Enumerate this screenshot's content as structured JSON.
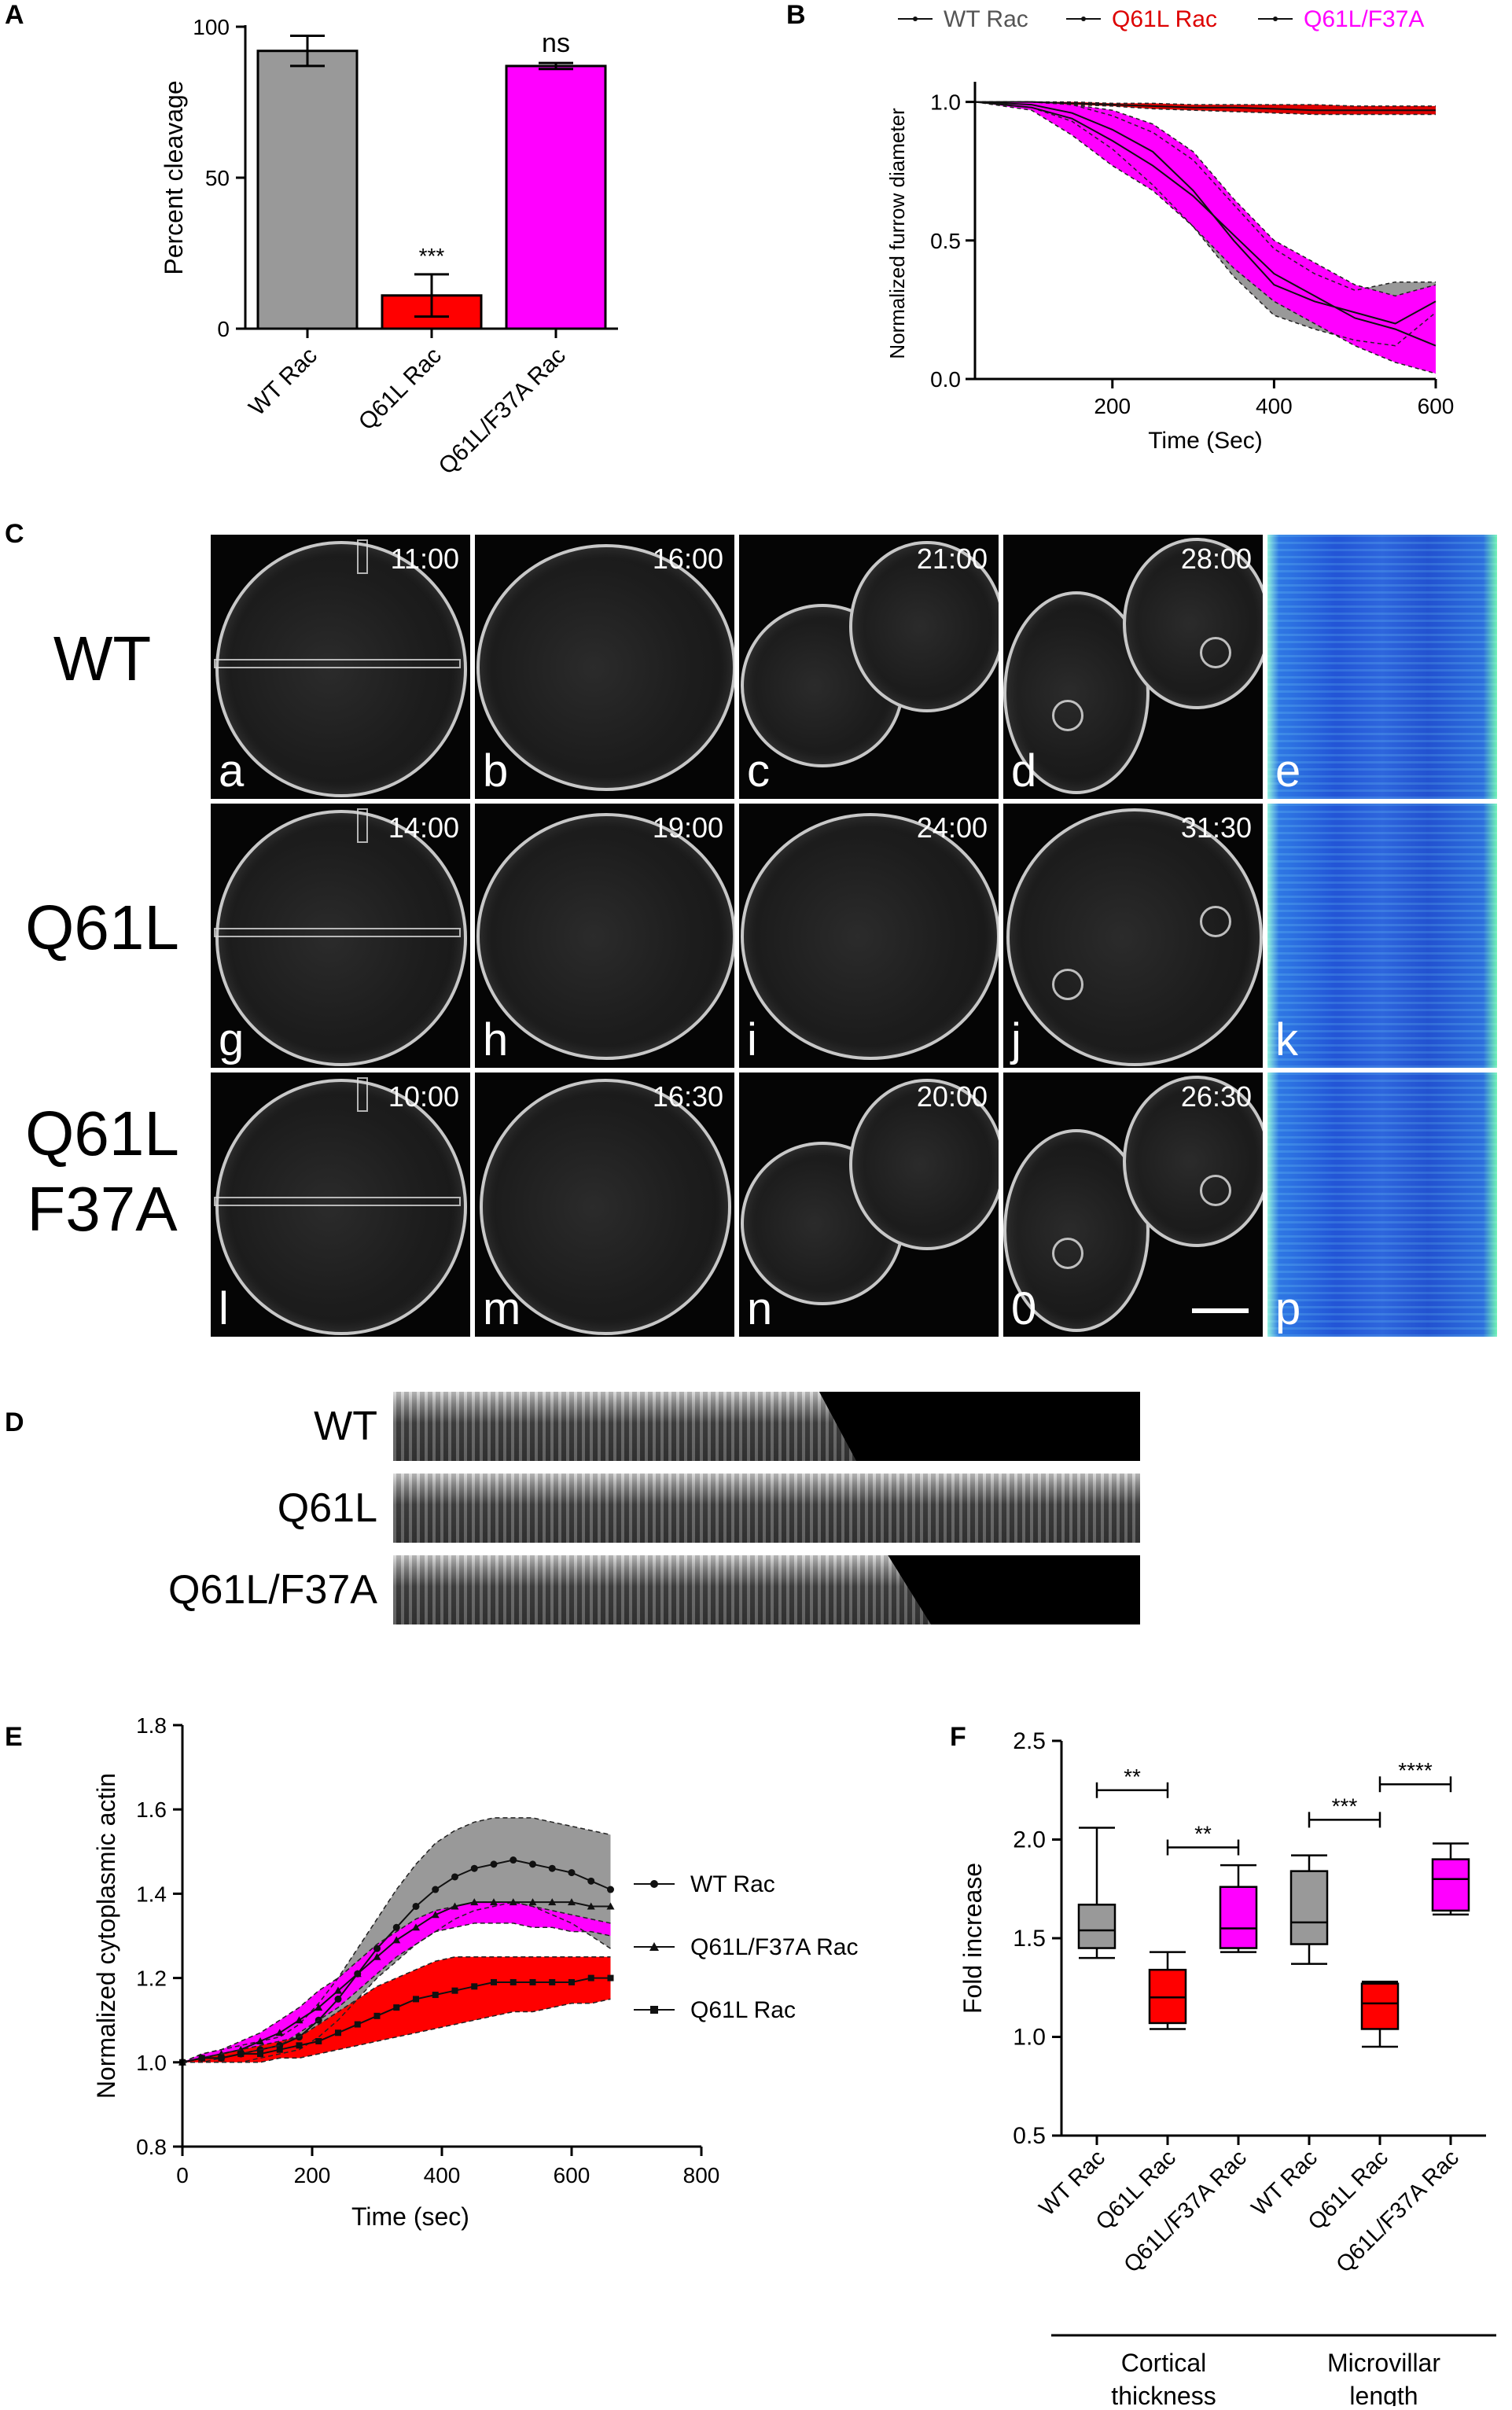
{
  "panels": {
    "A": {
      "letter": "A",
      "chart_data": {
        "type": "bar",
        "ylabel": "Percent cleavage",
        "ylim": [
          0,
          100
        ],
        "yticks": [
          "0",
          "50",
          "100"
        ],
        "categories": [
          "WT Rac",
          "Q61L Rac",
          "Q61L/F37A Rac"
        ],
        "values": [
          92,
          11,
          87
        ],
        "errors": [
          5,
          7,
          1
        ],
        "colors": [
          "#999999",
          "#ff0000",
          "#ff00ff"
        ],
        "annotations": [
          "",
          "***",
          "ns"
        ]
      }
    },
    "B": {
      "letter": "B",
      "chart_data": {
        "type": "line",
        "xlabel": "Time (Sec)",
        "ylabel": "Normalized furrow diameter",
        "xlim": [
          30,
          600
        ],
        "ylim": [
          0,
          1.05
        ],
        "xticks": [
          "200",
          "400",
          "600"
        ],
        "yticks": [
          "0.0",
          "0.5",
          "1.0"
        ],
        "legend": [
          "WT Rac",
          "Q61L Rac",
          "Q61L/F37A"
        ],
        "legend_colors": [
          "#555555",
          "#dd0000",
          "#ff00ff"
        ],
        "series": [
          {
            "name": "WT Rac",
            "color": "#999999",
            "x": [
              30,
              100,
              150,
              200,
              250,
              300,
              350,
              400,
              450,
              500,
              550,
              600
            ],
            "mean": [
              1.0,
              0.99,
              0.96,
              0.9,
              0.82,
              0.68,
              0.5,
              0.34,
              0.28,
              0.24,
              0.2,
              0.28
            ],
            "upper": [
              1.0,
              1.0,
              0.99,
              0.95,
              0.89,
              0.79,
              0.63,
              0.47,
              0.38,
              0.32,
              0.35,
              0.35
            ],
            "lower": [
              1.0,
              0.98,
              0.93,
              0.83,
              0.7,
              0.55,
              0.37,
              0.23,
              0.18,
              0.14,
              0.12,
              0.24
            ]
          },
          {
            "name": "Q61L/F37A",
            "color": "#ff00ff",
            "x": [
              30,
              100,
              150,
              200,
              250,
              300,
              350,
              400,
              450,
              500,
              550,
              600
            ],
            "mean": [
              1.0,
              0.98,
              0.94,
              0.86,
              0.77,
              0.66,
              0.52,
              0.38,
              0.3,
              0.22,
              0.18,
              0.12
            ],
            "upper": [
              1.0,
              1.0,
              0.99,
              0.97,
              0.92,
              0.82,
              0.65,
              0.5,
              0.42,
              0.34,
              0.3,
              0.34
            ],
            "lower": [
              1.0,
              0.97,
              0.88,
              0.77,
              0.68,
              0.55,
              0.4,
              0.28,
              0.2,
              0.12,
              0.06,
              0.02
            ]
          },
          {
            "name": "Q61L Rac",
            "color": "#dd0000",
            "x": [
              30,
              100,
              150,
              200,
              250,
              300,
              350,
              400,
              450,
              500,
              550,
              600
            ],
            "mean": [
              1.0,
              1.0,
              0.995,
              0.99,
              0.985,
              0.98,
              0.98,
              0.975,
              0.97,
              0.97,
              0.97,
              0.97
            ],
            "upper": [
              1.0,
              1.0,
              1.0,
              0.995,
              0.995,
              0.99,
              0.99,
              0.99,
              0.99,
              0.985,
              0.985,
              0.985
            ],
            "lower": [
              1.0,
              1.0,
              0.99,
              0.985,
              0.975,
              0.97,
              0.965,
              0.96,
              0.955,
              0.955,
              0.955,
              0.955
            ]
          }
        ]
      }
    },
    "C": {
      "letter": "C",
      "rows": [
        {
          "label_lines": [
            "WT"
          ],
          "tiles": [
            {
              "time": "11:00",
              "letter": "a"
            },
            {
              "time": "16:00",
              "letter": "b"
            },
            {
              "time": "21:00",
              "letter": "c"
            },
            {
              "time": "28:00",
              "letter": "d"
            }
          ],
          "kymo_letter": "e"
        },
        {
          "label_lines": [
            "Q61L"
          ],
          "tiles": [
            {
              "time": "14:00",
              "letter": "g"
            },
            {
              "time": "19:00",
              "letter": "h"
            },
            {
              "time": "24:00",
              "letter": "i"
            },
            {
              "time": "31:30",
              "letter": "j"
            }
          ],
          "kymo_letter": "k"
        },
        {
          "label_lines": [
            "Q61L",
            "F37A"
          ],
          "tiles": [
            {
              "time": "10:00",
              "letter": "l"
            },
            {
              "time": "16:30",
              "letter": "m"
            },
            {
              "time": "20:00",
              "letter": "n"
            },
            {
              "time": "26:30",
              "letter": "0"
            }
          ],
          "kymo_letter": "p"
        }
      ]
    },
    "D": {
      "letter": "D",
      "rows": [
        {
          "label": "WT",
          "band_fraction": 0.62
        },
        {
          "label": "Q61L",
          "band_fraction": 1.0
        },
        {
          "label": "Q61L/F37A",
          "band_fraction": 0.72
        }
      ]
    },
    "E": {
      "letter": "E",
      "chart_data": {
        "type": "line",
        "xlabel": "Time (sec)",
        "ylabel": "Normalized cytoplasmic actin",
        "xlim": [
          0,
          800
        ],
        "ylim": [
          0.8,
          1.8
        ],
        "xticks": [
          "0",
          "200",
          "400",
          "600",
          "800"
        ],
        "yticks": [
          "0.8",
          "1.0",
          "1.2",
          "1.4",
          "1.6",
          "1.8"
        ],
        "series": [
          {
            "name": "WT Rac",
            "marker": "circle",
            "color": "#999999",
            "x": [
              0,
              30,
              60,
              90,
              120,
              150,
              180,
              210,
              240,
              270,
              300,
              330,
              360,
              390,
              420,
              450,
              480,
              510,
              540,
              570,
              600,
              630,
              660
            ],
            "mean": [
              1.0,
              1.01,
              1.01,
              1.02,
              1.03,
              1.04,
              1.06,
              1.1,
              1.15,
              1.21,
              1.27,
              1.32,
              1.37,
              1.41,
              1.44,
              1.46,
              1.47,
              1.48,
              1.47,
              1.46,
              1.45,
              1.43,
              1.41
            ],
            "upper": [
              1.0,
              1.02,
              1.03,
              1.04,
              1.05,
              1.06,
              1.09,
              1.14,
              1.2,
              1.27,
              1.34,
              1.41,
              1.47,
              1.52,
              1.55,
              1.57,
              1.58,
              1.58,
              1.58,
              1.57,
              1.56,
              1.55,
              1.54
            ],
            "lower": [
              1.0,
              1.0,
              1.0,
              1.0,
              1.01,
              1.02,
              1.03,
              1.06,
              1.1,
              1.15,
              1.2,
              1.24,
              1.28,
              1.31,
              1.34,
              1.36,
              1.37,
              1.38,
              1.37,
              1.35,
              1.33,
              1.3,
              1.27
            ]
          },
          {
            "name": "Q61L/F37A Rac",
            "marker": "triangle",
            "color": "#ff00ff",
            "x": [
              0,
              30,
              60,
              90,
              120,
              150,
              180,
              210,
              240,
              270,
              300,
              330,
              360,
              390,
              420,
              450,
              480,
              510,
              540,
              570,
              600,
              630,
              660
            ],
            "mean": [
              1.0,
              1.01,
              1.02,
              1.03,
              1.05,
              1.07,
              1.1,
              1.13,
              1.17,
              1.21,
              1.25,
              1.29,
              1.32,
              1.35,
              1.37,
              1.38,
              1.38,
              1.38,
              1.38,
              1.38,
              1.38,
              1.37,
              1.37
            ],
            "upper": [
              1.0,
              1.02,
              1.03,
              1.05,
              1.07,
              1.1,
              1.13,
              1.17,
              1.2,
              1.24,
              1.28,
              1.31,
              1.34,
              1.36,
              1.37,
              1.38,
              1.38,
              1.38,
              1.37,
              1.36,
              1.35,
              1.34,
              1.33
            ],
            "lower": [
              1.0,
              1.0,
              1.01,
              1.02,
              1.03,
              1.04,
              1.07,
              1.1,
              1.13,
              1.17,
              1.21,
              1.25,
              1.28,
              1.31,
              1.32,
              1.33,
              1.33,
              1.33,
              1.32,
              1.32,
              1.31,
              1.31,
              1.3
            ]
          },
          {
            "name": "Q61L Rac",
            "marker": "square",
            "color": "#ff0000",
            "x": [
              0,
              30,
              60,
              90,
              120,
              150,
              180,
              210,
              240,
              270,
              300,
              330,
              360,
              390,
              420,
              450,
              480,
              510,
              540,
              570,
              600,
              630,
              660
            ],
            "mean": [
              1.0,
              1.01,
              1.01,
              1.02,
              1.02,
              1.03,
              1.04,
              1.05,
              1.07,
              1.09,
              1.11,
              1.13,
              1.15,
              1.16,
              1.17,
              1.18,
              1.19,
              1.19,
              1.19,
              1.19,
              1.19,
              1.2,
              1.2
            ],
            "upper": [
              1.0,
              1.01,
              1.02,
              1.03,
              1.04,
              1.05,
              1.06,
              1.09,
              1.12,
              1.15,
              1.18,
              1.2,
              1.22,
              1.24,
              1.25,
              1.25,
              1.25,
              1.25,
              1.25,
              1.25,
              1.25,
              1.25,
              1.25
            ],
            "lower": [
              1.0,
              1.0,
              1.0,
              1.0,
              1.0,
              1.01,
              1.01,
              1.02,
              1.03,
              1.04,
              1.05,
              1.06,
              1.07,
              1.08,
              1.09,
              1.1,
              1.11,
              1.12,
              1.12,
              1.13,
              1.14,
              1.14,
              1.15
            ]
          }
        ]
      }
    },
    "F": {
      "letter": "F",
      "chart_data": {
        "type": "box",
        "ylabel": "Fold increase",
        "ylim": [
          0.5,
          2.5
        ],
        "yticks": [
          "0.5",
          "1.0",
          "1.5",
          "2.0",
          "2.5"
        ],
        "categories": [
          "WT Rac",
          "Q61L Rac",
          "Q61L/F37A Rac",
          "WT Rac",
          "Q61L Rac",
          "Q61L/F37A Rac"
        ],
        "groups": [
          {
            "label_lines": [
              "Cortical",
              "thickness"
            ]
          },
          {
            "label_lines": [
              "Microvillar",
              "length"
            ]
          }
        ],
        "boxes": [
          {
            "min": 1.4,
            "q1": 1.45,
            "median": 1.54,
            "q3": 1.67,
            "max": 2.06,
            "color": "#999999"
          },
          {
            "min": 1.04,
            "q1": 1.07,
            "median": 1.2,
            "q3": 1.34,
            "max": 1.43,
            "color": "#ff0000"
          },
          {
            "min": 1.43,
            "q1": 1.45,
            "median": 1.55,
            "q3": 1.76,
            "max": 1.87,
            "color": "#ff00ff"
          },
          {
            "min": 1.37,
            "q1": 1.47,
            "median": 1.58,
            "q3": 1.84,
            "max": 1.92,
            "color": "#999999"
          },
          {
            "min": 0.95,
            "q1": 1.04,
            "median": 1.17,
            "q3": 1.27,
            "max": 1.28,
            "color": "#ff0000"
          },
          {
            "min": 1.62,
            "q1": 1.64,
            "median": 1.8,
            "q3": 1.9,
            "max": 1.98,
            "color": "#ff00ff"
          }
        ],
        "significance": [
          {
            "from": 0,
            "to": 1,
            "label": "**",
            "y": 2.25
          },
          {
            "from": 1,
            "to": 2,
            "label": "**",
            "y": 1.96
          },
          {
            "from": 3,
            "to": 4,
            "label": "***",
            "y": 2.1
          },
          {
            "from": 4,
            "to": 5,
            "label": "****",
            "y": 2.28
          }
        ]
      }
    }
  }
}
